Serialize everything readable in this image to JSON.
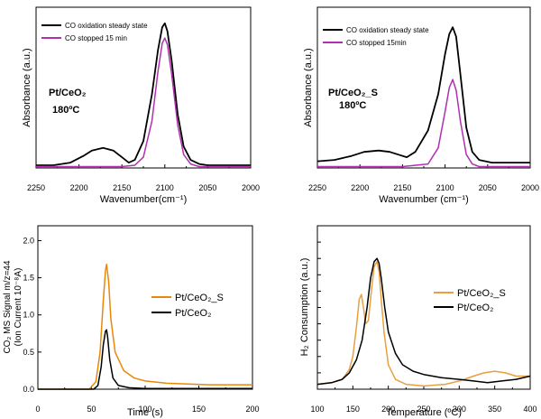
{
  "chart_data": [
    {
      "type": "line",
      "panel": "top-left",
      "xlabel": "Wavenumber(cm⁻¹)",
      "ylabel": "Absorbance (a.u.)",
      "xlim": [
        2250,
        2000
      ],
      "x_reversed": true,
      "ylim": [
        0,
        1.2
      ],
      "xticks": [
        2250,
        2200,
        2150,
        2100,
        2050,
        2000
      ],
      "yticks": [],
      "annotations": [
        {
          "text": "Pt/CeO₂"
        },
        {
          "text": "180ºC"
        }
      ],
      "legend_position": "top-left",
      "series": [
        {
          "name": "CO oxidation steady state",
          "color": "#000000",
          "x": [
            2250,
            2230,
            2210,
            2195,
            2185,
            2172,
            2160,
            2150,
            2142,
            2135,
            2125,
            2115,
            2108,
            2103,
            2100,
            2097,
            2092,
            2085,
            2078,
            2070,
            2060,
            2050,
            2035,
            2020,
            2000
          ],
          "y": [
            0.02,
            0.02,
            0.04,
            0.09,
            0.13,
            0.15,
            0.13,
            0.08,
            0.04,
            0.06,
            0.2,
            0.55,
            0.88,
            1.05,
            1.08,
            1.02,
            0.8,
            0.4,
            0.16,
            0.06,
            0.03,
            0.02,
            0.02,
            0.02,
            0.02
          ]
        },
        {
          "name": "CO stopped 15 min",
          "color": "#b030b0",
          "x": [
            2250,
            2200,
            2150,
            2135,
            2125,
            2115,
            2108,
            2103,
            2100,
            2097,
            2092,
            2085,
            2078,
            2070,
            2060,
            2040,
            2000
          ],
          "y": [
            0.01,
            0.01,
            0.01,
            0.02,
            0.08,
            0.35,
            0.72,
            0.93,
            0.97,
            0.92,
            0.7,
            0.32,
            0.1,
            0.03,
            0.01,
            0.01,
            0.01
          ]
        }
      ]
    },
    {
      "type": "line",
      "panel": "top-right",
      "xlabel": "Wavenumber (cm⁻¹)",
      "ylabel": "Absorbance (a.u.)",
      "xlim": [
        2250,
        2000
      ],
      "x_reversed": true,
      "ylim": [
        0,
        1.2
      ],
      "xticks": [
        2250,
        2200,
        2150,
        2100,
        2050,
        2000
      ],
      "yticks": [],
      "annotations": [
        {
          "text": "Pt/CeO₂_S"
        },
        {
          "text": "180ºC"
        }
      ],
      "legend_position": "top-left",
      "series": [
        {
          "name": "CO oxidation steady state",
          "color": "#000000",
          "x": [
            2250,
            2230,
            2210,
            2195,
            2178,
            2165,
            2155,
            2145,
            2135,
            2120,
            2108,
            2100,
            2095,
            2091,
            2087,
            2082,
            2075,
            2068,
            2060,
            2045,
            2025,
            2000
          ],
          "y": [
            0.05,
            0.06,
            0.09,
            0.12,
            0.13,
            0.12,
            0.1,
            0.08,
            0.12,
            0.28,
            0.55,
            0.85,
            1.0,
            1.05,
            0.98,
            0.7,
            0.3,
            0.12,
            0.06,
            0.04,
            0.04,
            0.04
          ]
        },
        {
          "name": "CO stopped 15min",
          "color": "#b030b0",
          "x": [
            2250,
            2150,
            2120,
            2108,
            2100,
            2095,
            2091,
            2087,
            2082,
            2075,
            2068,
            2060,
            2000
          ],
          "y": [
            0.01,
            0.01,
            0.03,
            0.15,
            0.42,
            0.6,
            0.66,
            0.58,
            0.35,
            0.1,
            0.03,
            0.01,
            0.01
          ]
        }
      ]
    },
    {
      "type": "line",
      "panel": "bottom-left",
      "xlabel": "Time (s)",
      "ylabel_line1": "CO₂ MS Signal m/z=44",
      "ylabel_line2": "(Ion Current 10⁻⁸A)",
      "xlim": [
        0,
        200
      ],
      "ylim": [
        0,
        2.2
      ],
      "xticks": [
        0,
        50,
        100,
        150,
        200
      ],
      "yticks": [
        0.0,
        0.5,
        1.0,
        1.5,
        2.0
      ],
      "yticklabels": [
        "0.0",
        "0.5",
        "1.0",
        "1.5",
        "2.0"
      ],
      "legend_position": "center-right",
      "series": [
        {
          "name": "Pt/CeO₂_S",
          "color": "#e8880a",
          "x": [
            0,
            48,
            54,
            58,
            61,
            63,
            64,
            66,
            68,
            72,
            80,
            90,
            100,
            120,
            140,
            160,
            200
          ],
          "y": [
            0.0,
            0.0,
            0.1,
            0.5,
            1.2,
            1.6,
            1.68,
            1.45,
            0.95,
            0.5,
            0.25,
            0.15,
            0.11,
            0.08,
            0.07,
            0.06,
            0.06
          ]
        },
        {
          "name": "Pt/CeO₂",
          "color": "#000000",
          "x": [
            0,
            52,
            56,
            59,
            61,
            63,
            64,
            65,
            67,
            70,
            75,
            85,
            100,
            200
          ],
          "y": [
            0.0,
            0.0,
            0.05,
            0.3,
            0.6,
            0.78,
            0.8,
            0.7,
            0.4,
            0.15,
            0.05,
            0.02,
            0.01,
            0.01
          ]
        }
      ]
    },
    {
      "type": "line",
      "panel": "bottom-right",
      "xlabel": "Temperature (ºC)",
      "ylabel": "H₂ Consumption (a.u.)",
      "xlim": [
        100,
        400
      ],
      "ylim": [
        0,
        1.0
      ],
      "xticks": [
        100,
        150,
        200,
        250,
        300,
        350,
        400
      ],
      "yticks_unlabeled": [
        0.0,
        0.1,
        0.2,
        0.3,
        0.4,
        0.5,
        0.6,
        0.7,
        0.8,
        0.9,
        1.0
      ],
      "legend_position": "center-right",
      "series": [
        {
          "name": "Pt/CeO₂_S",
          "color": "#e8a040",
          "x": [
            100,
            120,
            135,
            145,
            150,
            155,
            159,
            162,
            165,
            168,
            172,
            176,
            180,
            184,
            187,
            190,
            194,
            200,
            210,
            225,
            250,
            280,
            300,
            320,
            335,
            350,
            365,
            380,
            400
          ],
          "y": [
            0.03,
            0.04,
            0.06,
            0.12,
            0.2,
            0.38,
            0.55,
            0.58,
            0.5,
            0.4,
            0.42,
            0.6,
            0.75,
            0.78,
            0.72,
            0.55,
            0.35,
            0.15,
            0.06,
            0.03,
            0.02,
            0.03,
            0.05,
            0.08,
            0.1,
            0.11,
            0.1,
            0.08,
            0.08
          ]
        },
        {
          "name": "Pt/CeO₂",
          "color": "#000000",
          "x": [
            100,
            120,
            135,
            145,
            155,
            163,
            170,
            175,
            180,
            184,
            187,
            190,
            195,
            200,
            210,
            220,
            235,
            250,
            275,
            300,
            320,
            340,
            360,
            380,
            400
          ],
          "y": [
            0.03,
            0.04,
            0.06,
            0.1,
            0.18,
            0.3,
            0.5,
            0.68,
            0.78,
            0.8,
            0.77,
            0.68,
            0.5,
            0.35,
            0.22,
            0.15,
            0.11,
            0.09,
            0.07,
            0.06,
            0.05,
            0.04,
            0.05,
            0.06,
            0.08
          ]
        }
      ]
    }
  ]
}
